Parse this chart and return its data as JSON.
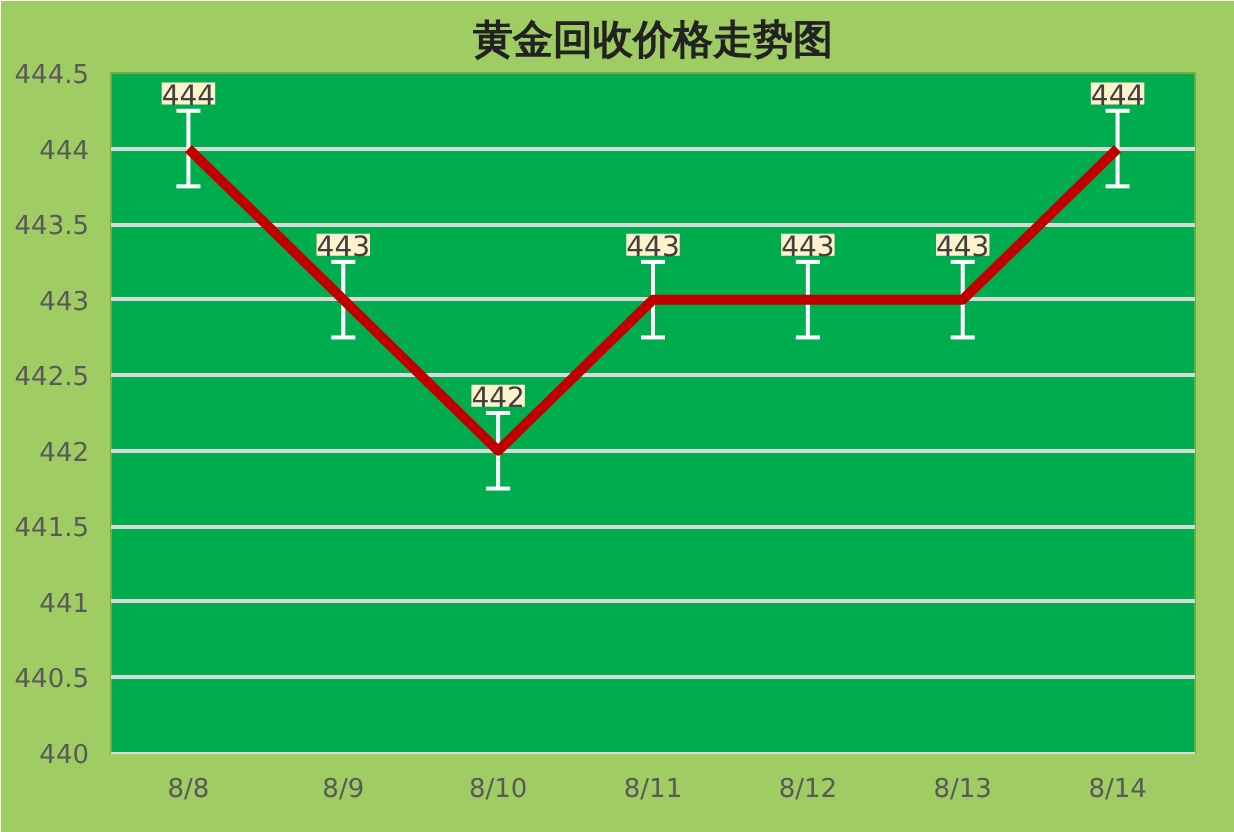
{
  "chart_data": {
    "type": "line",
    "title": "黄金回收价格走势图",
    "categories": [
      "8/8",
      "8/9",
      "8/10",
      "8/11",
      "8/12",
      "8/13",
      "8/14"
    ],
    "series": [
      {
        "color": "#c00000",
        "values": [
          444,
          443,
          442,
          443,
          443,
          443,
          444
        ],
        "errors": [
          0.25,
          0.25,
          0.25,
          0.25,
          0.25,
          0.25,
          0.25
        ]
      }
    ],
    "ylim": [
      440,
      444.5
    ],
    "yticks": [
      440,
      440.5,
      441,
      441.5,
      442,
      442.5,
      443,
      443.5,
      444,
      444.5
    ],
    "grid": "y",
    "data_labels": true,
    "line_style": "solid"
  }
}
